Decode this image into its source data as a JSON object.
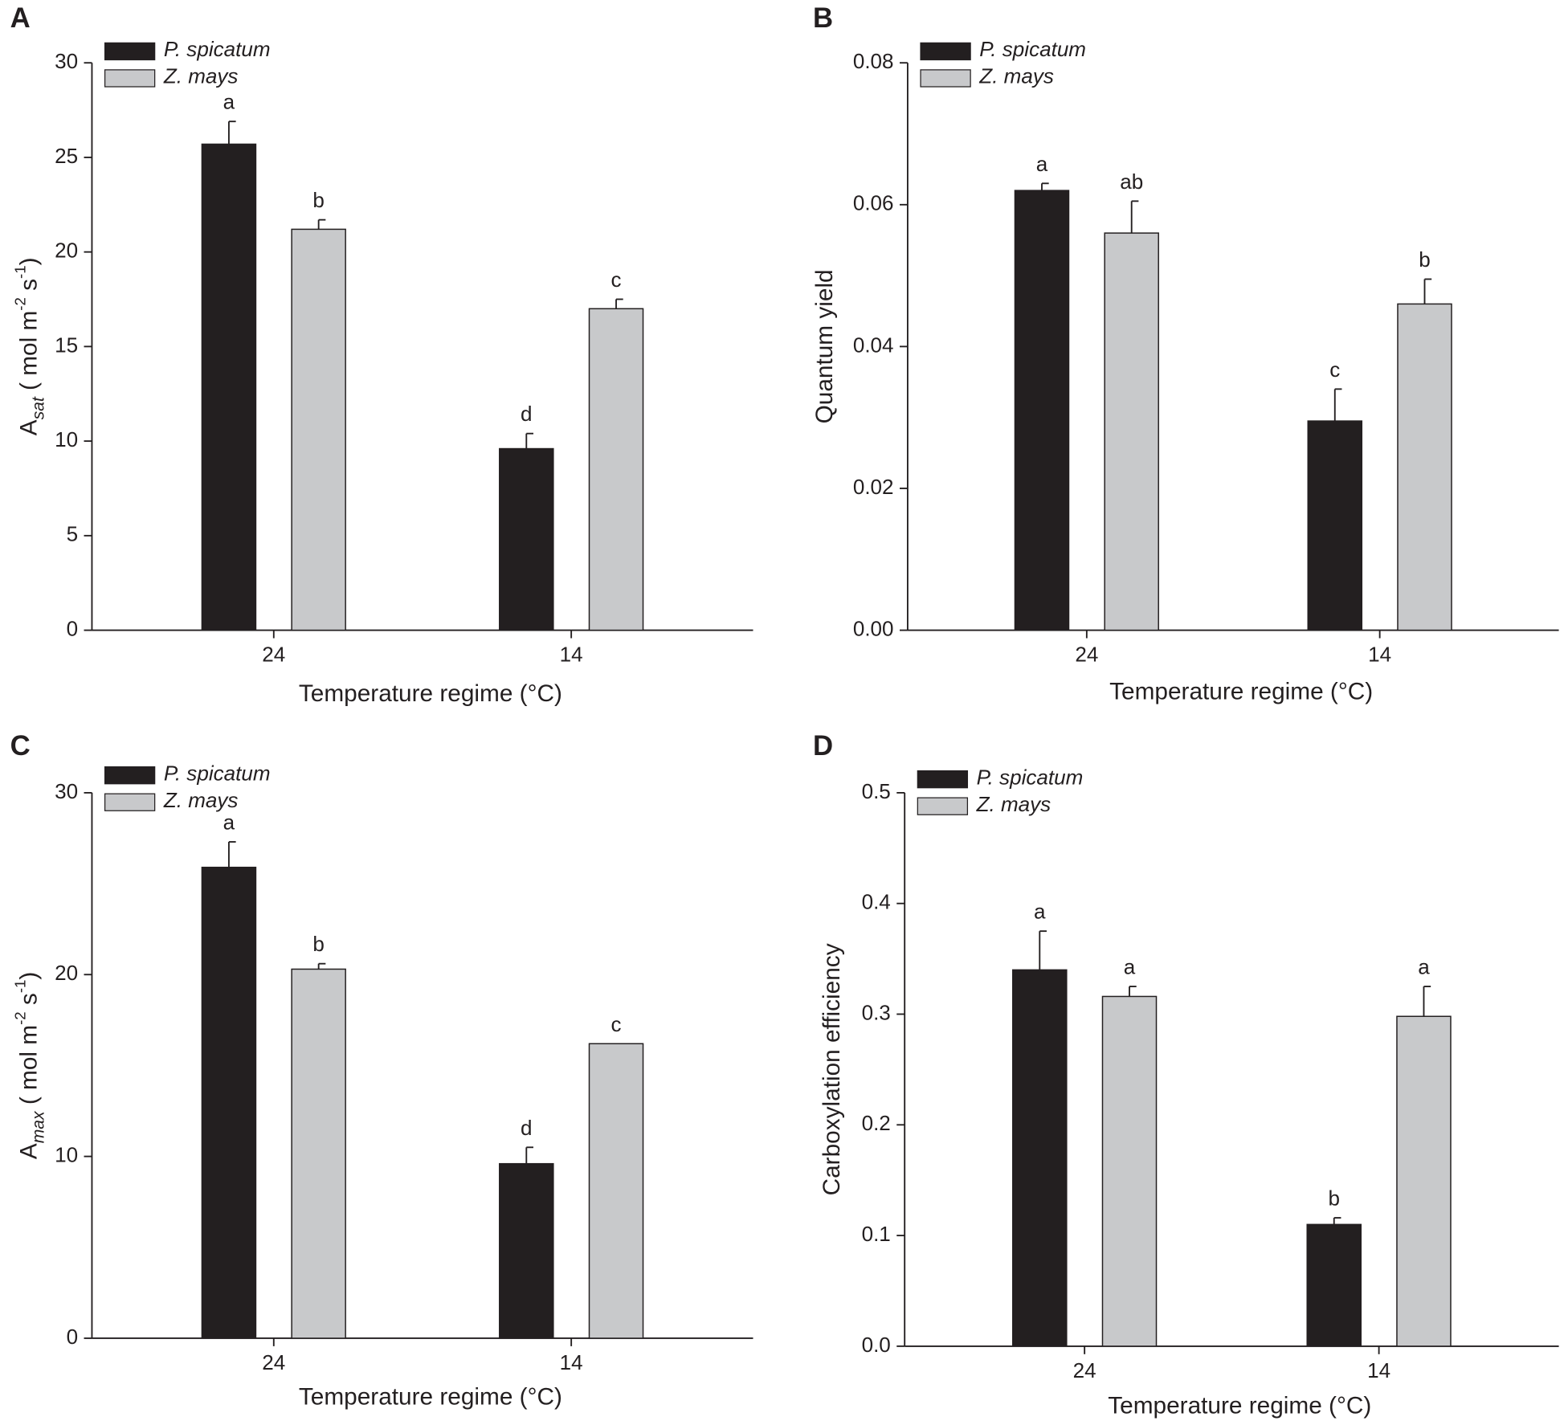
{
  "chart_data": [
    {
      "type": "bar",
      "panel": "A",
      "y_label": [
        {
          "text": "A"
        },
        {
          "text": "sat",
          "format": "sub-italic"
        },
        {
          "text": " ( mol m"
        },
        {
          "text": "-2",
          "format": "sup"
        },
        {
          "text": " s"
        },
        {
          "text": "-1",
          "format": "sup"
        },
        {
          "text": ")"
        }
      ],
      "x_label": "Temperature regime (°C)",
      "categories": [
        "24",
        "14"
      ],
      "series": [
        {
          "name": "P. spicatum",
          "color": "#231f20",
          "values": [
            25.7,
            9.6
          ],
          "errors": [
            1.2,
            0.8
          ],
          "letters": [
            "a",
            "d"
          ]
        },
        {
          "name": "Z. mays",
          "color": "#c8c9cb",
          "values": [
            21.2,
            17.0
          ],
          "errors": [
            0.5,
            0.5
          ],
          "letters": [
            "b",
            "c"
          ]
        }
      ],
      "ylim": [
        0,
        30
      ],
      "yticks": [
        0,
        5,
        10,
        15,
        20,
        25,
        30
      ]
    },
    {
      "type": "bar",
      "panel": "B",
      "y_label": [
        {
          "text": "Quantum yield"
        }
      ],
      "x_label": "Temperature regime (°C)",
      "categories": [
        "24",
        "14"
      ],
      "series": [
        {
          "name": "P. spicatum",
          "color": "#231f20",
          "values": [
            0.062,
            0.0295
          ],
          "errors": [
            0.001,
            0.0045
          ],
          "letters": [
            "a",
            "c"
          ]
        },
        {
          "name": "Z. mays",
          "color": "#c8c9cb",
          "values": [
            0.056,
            0.046
          ],
          "errors": [
            0.0045,
            0.0035
          ],
          "letters": [
            "ab",
            "b"
          ]
        }
      ],
      "ylim": [
        0,
        0.08
      ],
      "yticks": [
        {
          "value": 0,
          "label": "0.00"
        },
        0.02,
        0.04,
        0.06,
        0.08
      ]
    },
    {
      "type": "bar",
      "panel": "C",
      "y_label": [
        {
          "text": "A"
        },
        {
          "text": "max",
          "format": "sub-italic"
        },
        {
          "text": " ( mol m"
        },
        {
          "text": "-2",
          "format": "sup"
        },
        {
          "text": " s"
        },
        {
          "text": "-1",
          "format": "sup"
        },
        {
          "text": ")"
        }
      ],
      "x_label": "Temperature regime (°C)",
      "categories": [
        "24",
        "14"
      ],
      "series": [
        {
          "name": "P. spicatum",
          "color": "#231f20",
          "values": [
            25.9,
            9.6
          ],
          "errors": [
            1.4,
            0.9
          ],
          "letters": [
            "a",
            "d"
          ]
        },
        {
          "name": "Z. mays",
          "color": "#c8c9cb",
          "values": [
            20.3,
            16.2
          ],
          "errors": [
            0.3,
            null
          ],
          "letters": [
            "b",
            "c"
          ]
        }
      ],
      "ylim": [
        0,
        30
      ],
      "yticks": [
        0,
        10,
        20,
        30
      ]
    },
    {
      "type": "bar",
      "panel": "D",
      "y_label": [
        {
          "text": "Carboxylation efficiency"
        }
      ],
      "x_label": "Temperature regime (°C)",
      "categories": [
        "24",
        "14"
      ],
      "series": [
        {
          "name": "P. spicatum",
          "color": "#231f20",
          "values": [
            0.34,
            0.11
          ],
          "errors": [
            0.035,
            0.006
          ],
          "letters": [
            "a",
            "b"
          ]
        },
        {
          "name": "Z. mays",
          "color": "#c8c9cb",
          "values": [
            0.316,
            0.298
          ],
          "errors": [
            0.009,
            0.027
          ],
          "letters": [
            "a",
            "a"
          ]
        }
      ],
      "ylim": [
        0,
        0.5
      ],
      "yticks": [
        {
          "value": 0,
          "label": "0.0"
        },
        0.1,
        0.2,
        0.3,
        0.4,
        0.5
      ]
    }
  ]
}
